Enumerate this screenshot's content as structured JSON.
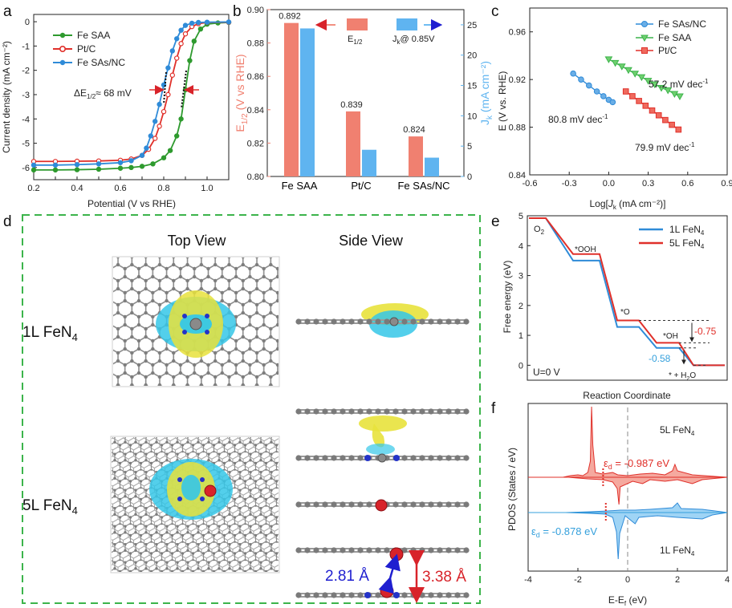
{
  "panel_labels": {
    "a": "a",
    "b": "b",
    "c": "c",
    "d": "d",
    "e": "e",
    "f": "f"
  },
  "colors": {
    "green": "#2e9a2e",
    "red": "#e0302a",
    "blue": "#2f8bd8",
    "salmon": "#f08070",
    "lightblue": "#5fb4f0",
    "dash_green": "#3cb44b",
    "cyan": "#35c7e8",
    "yellow": "#e8e23c",
    "grey_atom": "#8a8a8a",
    "o_atom": "#d8232a",
    "n_atom": "#2433c8"
  },
  "chart_data": [
    {
      "id": "a",
      "type": "line",
      "title": "",
      "xlabel": "Potential (V vs RHE)",
      "ylabel": "Current density  (mA cm⁻²)",
      "xlim": [
        0.2,
        1.1
      ],
      "ylim": [
        -6.5,
        0.3
      ],
      "xticks": [
        "0.2",
        "0.3",
        "0.4",
        "0.5",
        "0.6",
        "0.7",
        "0.8",
        "0.9",
        "1.0"
      ],
      "yticks": [
        "0",
        "-1",
        "-2",
        "-3",
        "-4",
        "-5",
        "-6"
      ],
      "series": [
        {
          "name": "Fe SAA",
          "color": "#2e9a2e",
          "x": [
            0.2,
            0.3,
            0.4,
            0.5,
            0.6,
            0.65,
            0.7,
            0.75,
            0.8,
            0.83,
            0.86,
            0.88,
            0.9,
            0.92,
            0.94,
            0.97,
            1.0,
            1.05,
            1.1
          ],
          "y": [
            -6.1,
            -6.1,
            -6.09,
            -6.07,
            -6.03,
            -6.0,
            -5.95,
            -5.85,
            -5.6,
            -5.3,
            -4.7,
            -4.0,
            -2.8,
            -1.6,
            -0.8,
            -0.3,
            -0.1,
            -0.05,
            -0.03
          ]
        },
        {
          "name": "Pt/C",
          "color": "#e0302a",
          "x": [
            0.2,
            0.3,
            0.4,
            0.5,
            0.6,
            0.65,
            0.7,
            0.73,
            0.76,
            0.78,
            0.8,
            0.82,
            0.84,
            0.86,
            0.88,
            0.9,
            0.93,
            0.96,
            1.0,
            1.1
          ],
          "y": [
            -5.75,
            -5.75,
            -5.74,
            -5.73,
            -5.7,
            -5.65,
            -5.5,
            -5.25,
            -4.8,
            -4.3,
            -3.7,
            -3.0,
            -2.2,
            -1.5,
            -0.9,
            -0.5,
            -0.2,
            -0.08,
            -0.03,
            -0.02
          ]
        },
        {
          "name": "Fe SAs/NC",
          "color": "#2f8bd8",
          "x": [
            0.2,
            0.3,
            0.4,
            0.5,
            0.6,
            0.65,
            0.7,
            0.72,
            0.74,
            0.76,
            0.78,
            0.8,
            0.82,
            0.84,
            0.86,
            0.88,
            0.9,
            0.93,
            0.96,
            1.0,
            1.1
          ],
          "y": [
            -5.9,
            -5.9,
            -5.88,
            -5.85,
            -5.8,
            -5.72,
            -5.5,
            -5.2,
            -4.7,
            -4.1,
            -3.4,
            -2.6,
            -1.9,
            -1.2,
            -0.7,
            -0.35,
            -0.15,
            -0.06,
            -0.03,
            -0.02,
            -0.01
          ]
        }
      ],
      "legend": [
        "Fe SAA",
        "Pt/C",
        "Fe SAs/NC"
      ],
      "legend_position": "top-left",
      "annotation": "ΔE",
      "annotation_sub": "1/2",
      "annotation_rest": "≈ 68 mV"
    },
    {
      "id": "b",
      "type": "bar",
      "categories": [
        "Fe SAA",
        "Pt/C",
        "Fe SAs/NC"
      ],
      "series": [
        {
          "name": "E1/2",
          "axis": "left",
          "color": "#f08070",
          "values": [
            0.892,
            0.839,
            0.824
          ]
        },
        {
          "name": "Jk@ 0.85V",
          "axis": "right",
          "color": "#5fb4f0",
          "values": [
            24.4,
            4.4,
            3.1
          ]
        }
      ],
      "data_labels": [
        "0.892",
        "0.839",
        "0.824"
      ],
      "ylabel_left": "E",
      "ylabel_left_sub": "1/2",
      "ylabel_left_rest": " (V vs RHE)",
      "ylabel_right": "J",
      "ylabel_right_sub": "k",
      "ylabel_right_rest": " (mA cm⁻²)",
      "ylim_left": [
        0.8,
        0.9
      ],
      "ylim_right": [
        0,
        27.5
      ],
      "yticks_left": [
        "0.80",
        "0.82",
        "0.84",
        "0.86",
        "0.88",
        "0.90"
      ],
      "yticks_right": [
        "0",
        "5",
        "10",
        "15",
        "20",
        "25"
      ],
      "legend_e": "E",
      "legend_e_sub": "1/2",
      "legend_j": "J",
      "legend_j_sub": "k",
      "legend_j_rest": "@ 0.85V"
    },
    {
      "id": "c",
      "type": "line",
      "xlabel_pre": "Log[",
      "xlabel_j": "J",
      "xlabel_sub": "k",
      "xlabel_post": " (mA cm⁻²)]",
      "ylabel": "E (V vs. RHE)",
      "xlim": [
        -0.6,
        0.9
      ],
      "ylim": [
        0.84,
        0.98
      ],
      "xticks": [
        "-0.6",
        "-0.3",
        "0.0",
        "0.3",
        "0.6",
        "0.9"
      ],
      "yticks": [
        "0.84",
        "0.88",
        "0.92",
        "0.96"
      ],
      "series": [
        {
          "name": "Fe SAs/NC",
          "color": "#2f8bd8",
          "marker": "circle",
          "x": [
            -0.27,
            -0.21,
            -0.15,
            -0.09,
            -0.04,
            0.0,
            0.03
          ],
          "y": [
            0.925,
            0.92,
            0.915,
            0.91,
            0.906,
            0.903,
            0.901
          ]
        },
        {
          "name": "Fe SAA",
          "color": "#3cb44b",
          "marker": "triangle-down",
          "x": [
            0.0,
            0.05,
            0.1,
            0.15,
            0.2,
            0.25,
            0.3,
            0.35,
            0.4,
            0.45,
            0.5,
            0.54
          ],
          "y": [
            0.937,
            0.934,
            0.931,
            0.928,
            0.925,
            0.922,
            0.919,
            0.916,
            0.913,
            0.911,
            0.908,
            0.906
          ]
        },
        {
          "name": "Pt/C",
          "color": "#e0302a",
          "marker": "square",
          "x": [
            0.13,
            0.18,
            0.23,
            0.28,
            0.33,
            0.38,
            0.43,
            0.48,
            0.53
          ],
          "y": [
            0.91,
            0.906,
            0.902,
            0.898,
            0.894,
            0.89,
            0.886,
            0.882,
            0.878
          ]
        }
      ],
      "legend": [
        "Fe SAs/NC",
        "Fe SAA",
        "Pt/C"
      ],
      "annotations": [
        "80.8 mV dec",
        "57.2 mV dec",
        "79.9 mV dec"
      ],
      "annotation_sup": "-1"
    },
    {
      "id": "e",
      "type": "line",
      "xlabel": "Reaction Coordinate",
      "ylabel": "Free energy (eV)",
      "ylim": [
        -0.5,
        5
      ],
      "yticks": [
        "0",
        "1",
        "2",
        "3",
        "4",
        "5"
      ],
      "series": [
        {
          "name": "1L FeN4",
          "color": "#2f8bd8",
          "levels": [
            4.92,
            3.5,
            1.28,
            0.58,
            0.0
          ]
        },
        {
          "name": "5L FeN4",
          "color": "#e0302a",
          "levels": [
            4.92,
            3.72,
            1.5,
            0.75,
            0.0
          ]
        }
      ],
      "legend_1": "1L FeN",
      "legend_5": "5L FeN",
      "legend_sub": "4",
      "species": [
        "O",
        "*OOH",
        "*O",
        "*OH",
        "* + H",
        "O"
      ],
      "species_subs": [
        "2",
        "2"
      ],
      "condition": "U=0 V",
      "overpotentials": [
        "-0.75",
        "-0.58"
      ]
    },
    {
      "id": "f",
      "type": "area",
      "xlabel": "E-E",
      "xlabel_sub": "f",
      "xlabel_rest": " (eV)",
      "ylabel": "PDOS (States / eV)",
      "xlim": [
        -4,
        4
      ],
      "xticks": [
        "-4",
        "-2",
        "0",
        "2",
        "4"
      ],
      "series": [
        {
          "name": "5L FeN4",
          "color": "#f08070"
        },
        {
          "name": "1L FeN4",
          "color": "#5fb4f0"
        }
      ],
      "d_band_centers": [
        -0.987,
        -0.878
      ],
      "label_5l": "5L FeN",
      "label_1l": "1L FeN",
      "label_sub": "4",
      "eps_symbol": "ε",
      "eps_sub": "d",
      "eps_5l_value": " = -0.987 eV",
      "eps_1l_value": " = -0.878 eV"
    }
  ],
  "structure_panel": {
    "top_view": "Top View",
    "side_view": "Side View",
    "row1_label": "1L FeN",
    "row2_label": "5L FeN",
    "row_sub": "4",
    "dist1": "2.81 Å",
    "dist2": "3.38 Å"
  }
}
